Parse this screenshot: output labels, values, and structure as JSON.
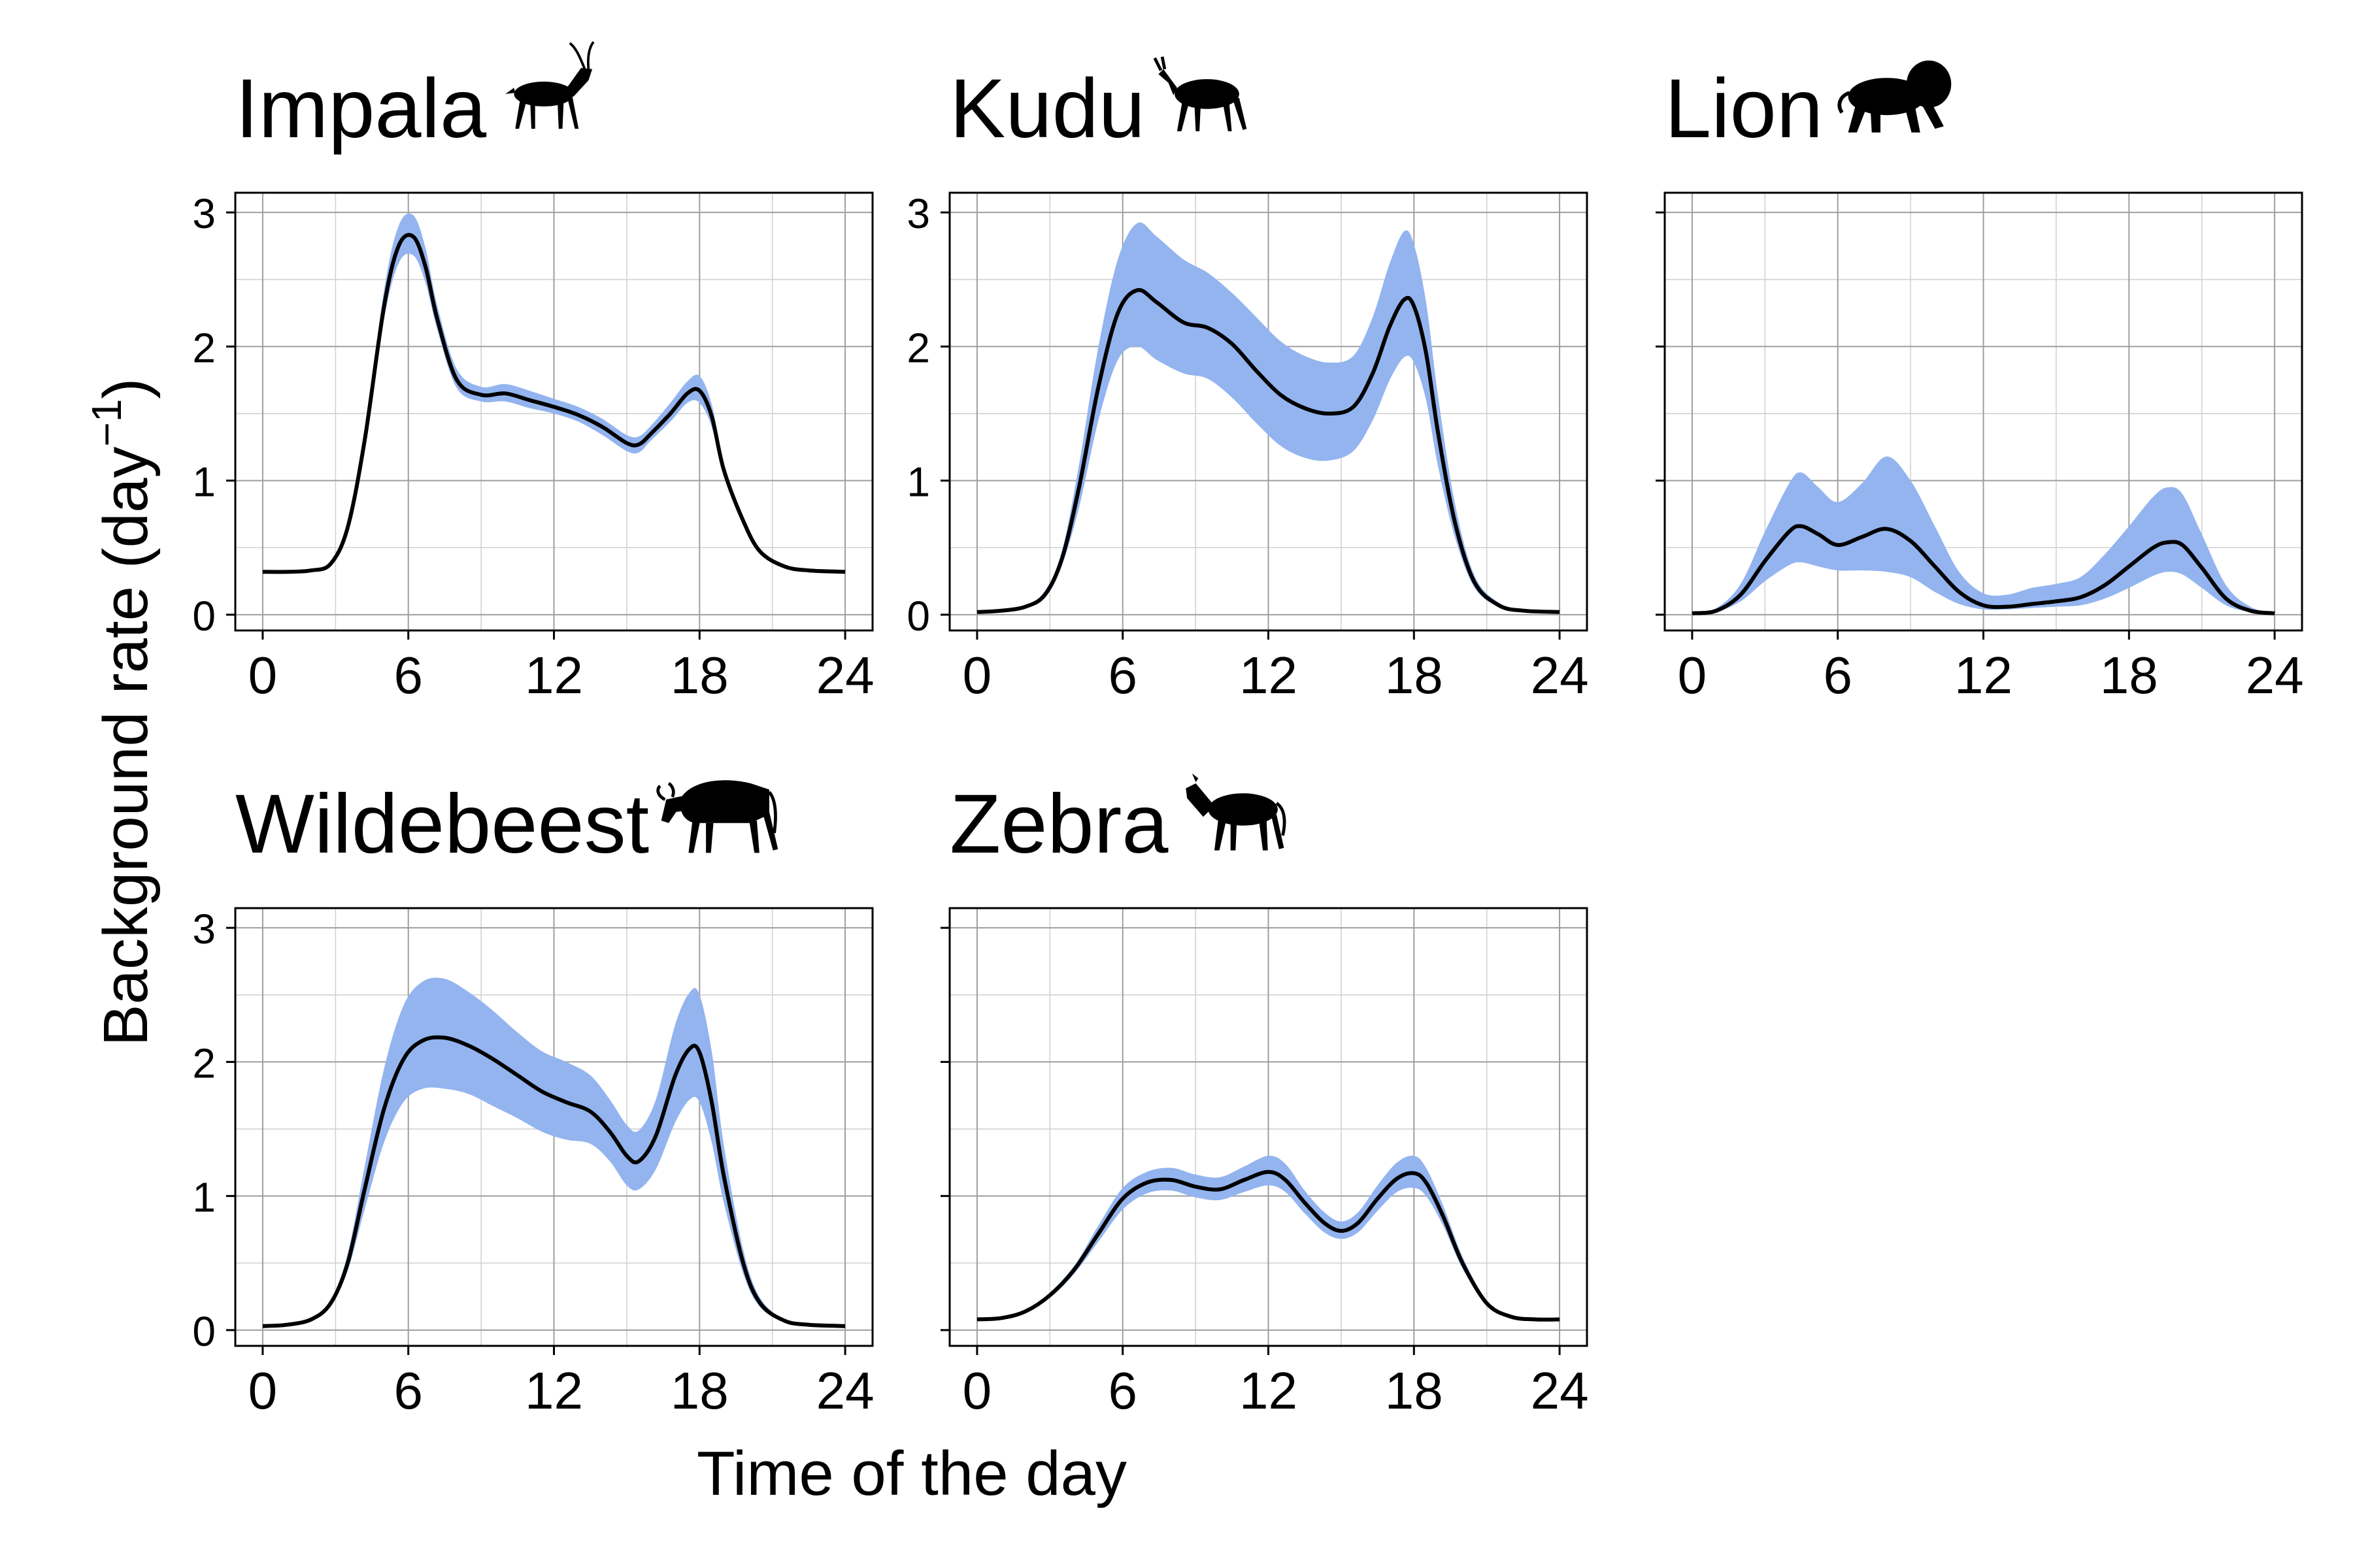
{
  "figure": {
    "xlabel": "Time of the day",
    "ylabel_main": "Background rate (day",
    "ylabel_sup": "−1",
    "ylabel_close": ")"
  },
  "style": {
    "band_color": "#93b4ef",
    "line_color": "#000000",
    "grid_major": "#9e9e9e",
    "grid_minor": "#d2d2d2"
  },
  "chart_data": [
    {
      "type": "line",
      "title": "Impala",
      "icon": "impala-icon",
      "xlim": [
        0,
        24
      ],
      "ylim": [
        0,
        3
      ],
      "x_ticks": [
        "0",
        "6",
        "12",
        "18",
        "24"
      ],
      "y_ticks": [
        "0",
        "1",
        "2",
        "3"
      ],
      "x": [
        0,
        1,
        2,
        2.8,
        3.5,
        4.2,
        5,
        5.6,
        6.2,
        6.7,
        7.2,
        8,
        9,
        10,
        11,
        12,
        13,
        14,
        15,
        15.5,
        16,
        16.8,
        17.5,
        18,
        18.5,
        19,
        19.8,
        20.5,
        21.5,
        22.5,
        24
      ],
      "series": [
        {
          "values": [
            0.32,
            0.32,
            0.33,
            0.38,
            0.65,
            1.3,
            2.3,
            2.75,
            2.82,
            2.6,
            2.2,
            1.75,
            1.64,
            1.65,
            1.6,
            1.55,
            1.49,
            1.4,
            1.28,
            1.27,
            1.35,
            1.5,
            1.65,
            1.67,
            1.48,
            1.08,
            0.7,
            0.47,
            0.36,
            0.33,
            0.32
          ],
          "lower": [
            0.32,
            0.32,
            0.33,
            0.38,
            0.64,
            1.25,
            2.2,
            2.62,
            2.68,
            2.48,
            2.12,
            1.69,
            1.59,
            1.59,
            1.54,
            1.5,
            1.44,
            1.34,
            1.22,
            1.21,
            1.3,
            1.44,
            1.58,
            1.58,
            1.4,
            1.03,
            0.68,
            0.46,
            0.35,
            0.33,
            0.32
          ],
          "upper": [
            0.32,
            0.32,
            0.33,
            0.38,
            0.66,
            1.35,
            2.42,
            2.9,
            2.98,
            2.74,
            2.3,
            1.83,
            1.7,
            1.72,
            1.67,
            1.61,
            1.55,
            1.46,
            1.34,
            1.33,
            1.41,
            1.58,
            1.74,
            1.78,
            1.57,
            1.13,
            0.73,
            0.49,
            0.37,
            0.33,
            0.32
          ]
        }
      ]
    },
    {
      "type": "line",
      "title": "Kudu",
      "icon": "kudu-icon",
      "xlim": [
        0,
        24
      ],
      "ylim": [
        0,
        3
      ],
      "x_ticks": [
        "0",
        "6",
        "12",
        "18",
        "24"
      ],
      "y_ticks": [
        "0",
        "1",
        "2",
        "3"
      ],
      "x": [
        0,
        1,
        2,
        2.8,
        3.5,
        4.2,
        5,
        5.8,
        6.6,
        7.4,
        8.5,
        9.5,
        10.5,
        11.5,
        12.5,
        13.5,
        14.5,
        15.5,
        16.3,
        17,
        17.6,
        18,
        18.5,
        19,
        19.7,
        20.5,
        21.5,
        22.5,
        24
      ],
      "series": [
        {
          "values": [
            0.02,
            0.03,
            0.06,
            0.15,
            0.42,
            0.95,
            1.7,
            2.25,
            2.42,
            2.33,
            2.18,
            2.14,
            2.02,
            1.82,
            1.64,
            1.54,
            1.5,
            1.55,
            1.8,
            2.15,
            2.35,
            2.3,
            1.95,
            1.35,
            0.68,
            0.24,
            0.07,
            0.03,
            0.02
          ],
          "lower": [
            0.02,
            0.03,
            0.05,
            0.13,
            0.37,
            0.8,
            1.45,
            1.9,
            2.0,
            1.9,
            1.8,
            1.76,
            1.62,
            1.43,
            1.26,
            1.17,
            1.15,
            1.22,
            1.45,
            1.75,
            1.92,
            1.88,
            1.6,
            1.1,
            0.57,
            0.2,
            0.06,
            0.03,
            0.02
          ],
          "upper": [
            0.02,
            0.03,
            0.07,
            0.18,
            0.48,
            1.12,
            2.0,
            2.65,
            2.92,
            2.82,
            2.65,
            2.55,
            2.4,
            2.22,
            2.04,
            1.93,
            1.88,
            1.93,
            2.22,
            2.62,
            2.86,
            2.76,
            2.33,
            1.62,
            0.82,
            0.29,
            0.09,
            0.04,
            0.02
          ]
        }
      ]
    },
    {
      "type": "line",
      "title": "Lion",
      "icon": "lion-icon",
      "xlim": [
        0,
        24
      ],
      "ylim": [
        0,
        3
      ],
      "x_ticks": [
        "0",
        "6",
        "12",
        "18",
        "24"
      ],
      "y_ticks": [],
      "x": [
        0,
        1,
        2,
        3,
        4,
        4.5,
        5.2,
        6,
        7,
        8,
        9,
        10,
        11,
        12,
        13,
        14,
        15,
        16,
        17,
        18,
        19,
        19.6,
        20.2,
        21,
        22,
        23,
        24
      ],
      "series": [
        {
          "values": [
            0.01,
            0.03,
            0.15,
            0.4,
            0.62,
            0.66,
            0.6,
            0.52,
            0.58,
            0.64,
            0.55,
            0.36,
            0.17,
            0.07,
            0.06,
            0.08,
            0.1,
            0.13,
            0.22,
            0.36,
            0.5,
            0.54,
            0.52,
            0.35,
            0.12,
            0.03,
            0.01
          ],
          "lower": [
            0.01,
            0.02,
            0.1,
            0.25,
            0.37,
            0.39,
            0.36,
            0.33,
            0.33,
            0.32,
            0.28,
            0.17,
            0.08,
            0.04,
            0.04,
            0.05,
            0.06,
            0.07,
            0.12,
            0.2,
            0.29,
            0.32,
            0.3,
            0.2,
            0.07,
            0.02,
            0.01
          ],
          "upper": [
            0.01,
            0.05,
            0.23,
            0.62,
            0.98,
            1.06,
            0.95,
            0.84,
            0.98,
            1.18,
            1.0,
            0.66,
            0.32,
            0.16,
            0.15,
            0.2,
            0.23,
            0.28,
            0.45,
            0.66,
            0.88,
            0.95,
            0.9,
            0.6,
            0.22,
            0.06,
            0.01
          ]
        }
      ]
    },
    {
      "type": "line",
      "title": "Wildebeest",
      "icon": "wildebeest-icon",
      "xlim": [
        0,
        24
      ],
      "ylim": [
        0,
        3
      ],
      "x_ticks": [
        "0",
        "6",
        "12",
        "18",
        "24"
      ],
      "y_ticks": [
        "0",
        "1",
        "2",
        "3"
      ],
      "x": [
        0,
        1,
        2,
        2.8,
        3.5,
        4.2,
        5,
        5.8,
        6.6,
        7.5,
        8.5,
        9.5,
        10.5,
        11.5,
        12.5,
        13.5,
        14.3,
        15,
        15.5,
        16.2,
        17,
        17.6,
        18,
        18.5,
        19,
        19.8,
        20.5,
        21.5,
        22.5,
        24
      ],
      "series": [
        {
          "values": [
            0.03,
            0.04,
            0.08,
            0.2,
            0.5,
            1.05,
            1.65,
            2.02,
            2.16,
            2.18,
            2.12,
            2.02,
            1.9,
            1.78,
            1.7,
            1.63,
            1.48,
            1.3,
            1.26,
            1.45,
            1.9,
            2.1,
            2.07,
            1.7,
            1.15,
            0.5,
            0.2,
            0.07,
            0.04,
            0.03
          ],
          "lower": [
            0.03,
            0.04,
            0.07,
            0.18,
            0.44,
            0.9,
            1.4,
            1.7,
            1.8,
            1.8,
            1.76,
            1.67,
            1.58,
            1.48,
            1.42,
            1.39,
            1.26,
            1.08,
            1.05,
            1.2,
            1.55,
            1.72,
            1.7,
            1.4,
            0.95,
            0.42,
            0.17,
            0.06,
            0.04,
            0.03
          ],
          "upper": [
            0.03,
            0.05,
            0.09,
            0.22,
            0.57,
            1.22,
            1.95,
            2.42,
            2.6,
            2.62,
            2.52,
            2.38,
            2.22,
            2.08,
            2.0,
            1.9,
            1.72,
            1.53,
            1.49,
            1.72,
            2.28,
            2.52,
            2.5,
            2.08,
            1.38,
            0.6,
            0.24,
            0.08,
            0.05,
            0.03
          ]
        }
      ]
    },
    {
      "type": "line",
      "title": "Zebra",
      "icon": "zebra-icon",
      "xlim": [
        0,
        24
      ],
      "ylim": [
        0,
        3
      ],
      "x_ticks": [
        "0",
        "6",
        "12",
        "18",
        "24"
      ],
      "y_ticks": [],
      "x": [
        0,
        1,
        2,
        3,
        4,
        5,
        6,
        7,
        8,
        9,
        10,
        11,
        12,
        12.7,
        13.5,
        14.3,
        15,
        15.7,
        16.5,
        17.3,
        18,
        18.5,
        19.2,
        20,
        21,
        22,
        23,
        24
      ],
      "series": [
        {
          "values": [
            0.08,
            0.09,
            0.14,
            0.26,
            0.45,
            0.72,
            0.98,
            1.1,
            1.12,
            1.07,
            1.05,
            1.12,
            1.18,
            1.12,
            0.95,
            0.8,
            0.74,
            0.8,
            0.98,
            1.13,
            1.17,
            1.1,
            0.85,
            0.5,
            0.2,
            0.1,
            0.08,
            0.08
          ],
          "lower": [
            0.08,
            0.09,
            0.13,
            0.24,
            0.42,
            0.66,
            0.9,
            1.02,
            1.04,
            0.99,
            0.97,
            1.03,
            1.08,
            1.03,
            0.87,
            0.73,
            0.68,
            0.73,
            0.89,
            1.03,
            1.06,
            1.0,
            0.78,
            0.46,
            0.19,
            0.1,
            0.08,
            0.08
          ],
          "upper": [
            0.08,
            0.1,
            0.15,
            0.28,
            0.48,
            0.78,
            1.06,
            1.18,
            1.21,
            1.16,
            1.14,
            1.22,
            1.3,
            1.24,
            1.04,
            0.88,
            0.81,
            0.88,
            1.08,
            1.25,
            1.3,
            1.21,
            0.93,
            0.55,
            0.22,
            0.11,
            0.08,
            0.08
          ]
        }
      ]
    }
  ]
}
